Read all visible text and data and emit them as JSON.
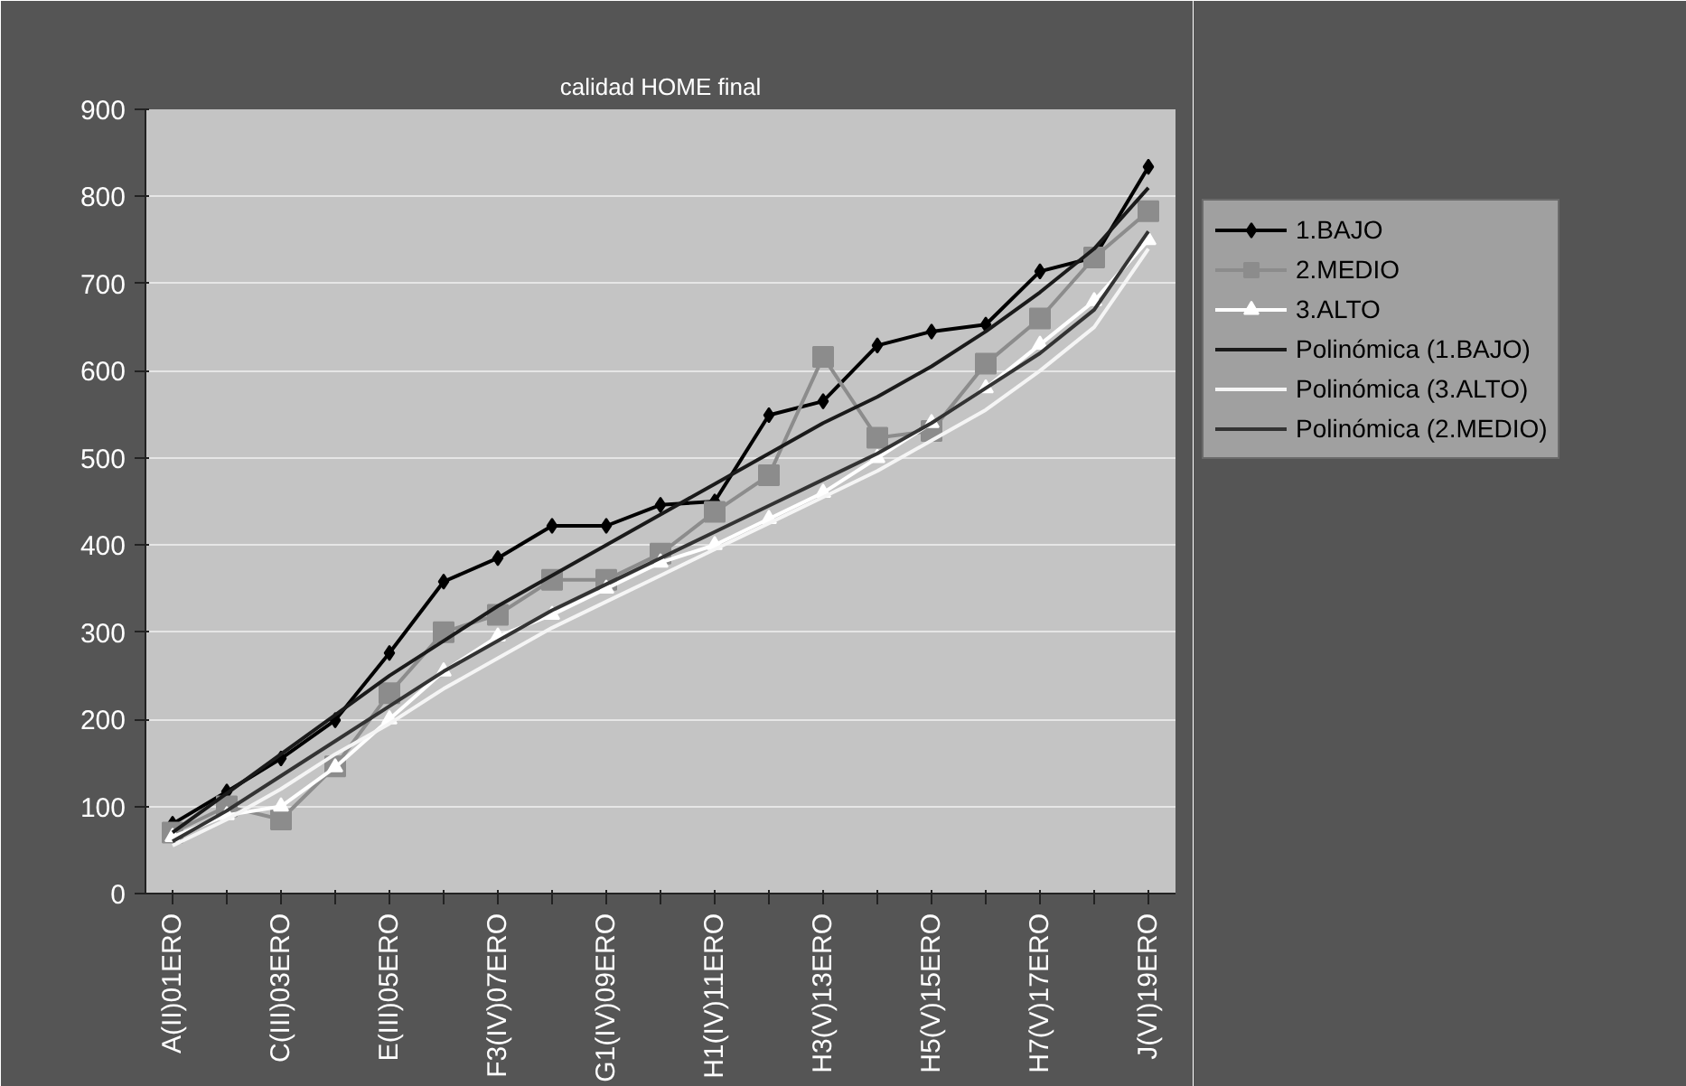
{
  "chart_data": {
    "type": "line",
    "title": "calidad HOME final",
    "categories": [
      "A(II)01ERO",
      null,
      "C(III)03ERO",
      null,
      "E(III)05ERO",
      null,
      "F3(IV)07ERO",
      null,
      "G1(IV)09ERO",
      null,
      "H1(IV)11ERO",
      null,
      "H3(V)13ERO",
      null,
      "H5(V)15ERO",
      null,
      "H7(V)17ERO",
      null,
      "J(VI)19ERO"
    ],
    "ylim": [
      0,
      900
    ],
    "yticks": [
      0,
      100,
      200,
      300,
      400,
      500,
      600,
      700,
      800,
      900
    ],
    "grid": "y",
    "legend": "right",
    "series": [
      {
        "name": "1.BAJO",
        "color": "#000000",
        "marker": "diamond",
        "values": [
          80,
          117,
          155,
          199,
          276,
          358,
          385,
          422,
          422,
          446,
          450,
          549,
          565,
          629,
          645,
          653,
          714,
          730,
          834
        ]
      },
      {
        "name": "2.MEDIO",
        "color": "#8c8c8c",
        "marker": "square",
        "values": [
          70,
          100,
          85,
          146,
          230,
          300,
          320,
          360,
          360,
          390,
          438,
          480,
          616,
          523,
          531,
          608,
          660,
          730,
          783
        ]
      },
      {
        "name": "3.ALTO",
        "color": "#ffffff",
        "marker": "triangle",
        "values": [
          65,
          90,
          100,
          145,
          200,
          255,
          295,
          320,
          350,
          380,
          400,
          430,
          460,
          500,
          540,
          580,
          630,
          680,
          750
        ]
      },
      {
        "name": "Polinómica (1.BAJO)",
        "color": "#1a1a1a",
        "marker": "none",
        "values": [
          70,
          115,
          160,
          205,
          250,
          290,
          330,
          365,
          400,
          435,
          470,
          505,
          540,
          570,
          605,
          645,
          690,
          740,
          810
        ]
      },
      {
        "name": "Polinómica (3.ALTO)",
        "color": "#f5f5f5",
        "marker": "none",
        "values": [
          55,
          85,
          120,
          160,
          195,
          235,
          270,
          305,
          335,
          365,
          395,
          425,
          455,
          485,
          520,
          555,
          600,
          650,
          740
        ]
      },
      {
        "name": "Polinómica (2.MEDIO)",
        "color": "#333333",
        "marker": "none",
        "values": [
          60,
          95,
          135,
          175,
          215,
          255,
          290,
          325,
          355,
          385,
          415,
          445,
          475,
          505,
          540,
          580,
          620,
          670,
          760
        ]
      }
    ]
  }
}
